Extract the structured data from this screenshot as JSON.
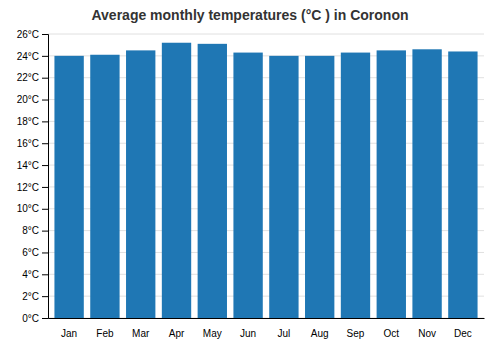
{
  "chart_data": {
    "type": "bar",
    "title": "Average monthly temperatures (°C ) in Coronon",
    "categories": [
      "Jan",
      "Feb",
      "Mar",
      "Apr",
      "May",
      "Jun",
      "Jul",
      "Aug",
      "Sep",
      "Oct",
      "Nov",
      "Dec"
    ],
    "values": [
      24.0,
      24.1,
      24.5,
      25.2,
      25.1,
      24.3,
      24.0,
      24.0,
      24.3,
      24.5,
      24.6,
      24.4
    ],
    "ylim": [
      0,
      26
    ],
    "yticks": [
      {
        "value": 0,
        "label": "0°C"
      },
      {
        "value": 2,
        "label": "2°C"
      },
      {
        "value": 4,
        "label": "4°C"
      },
      {
        "value": 6,
        "label": "6°C"
      },
      {
        "value": 8,
        "label": "8°C"
      },
      {
        "value": 10,
        "label": "10°C"
      },
      {
        "value": 12,
        "label": "12°C"
      },
      {
        "value": 14,
        "label": "14°C"
      },
      {
        "value": 16,
        "label": "16°C"
      },
      {
        "value": 18,
        "label": "18°C"
      },
      {
        "value": 20,
        "label": "20°C"
      },
      {
        "value": 22,
        "label": "22°C"
      },
      {
        "value": 24,
        "label": "24°C"
      },
      {
        "value": 26,
        "label": "26°C"
      }
    ],
    "grid": true
  }
}
